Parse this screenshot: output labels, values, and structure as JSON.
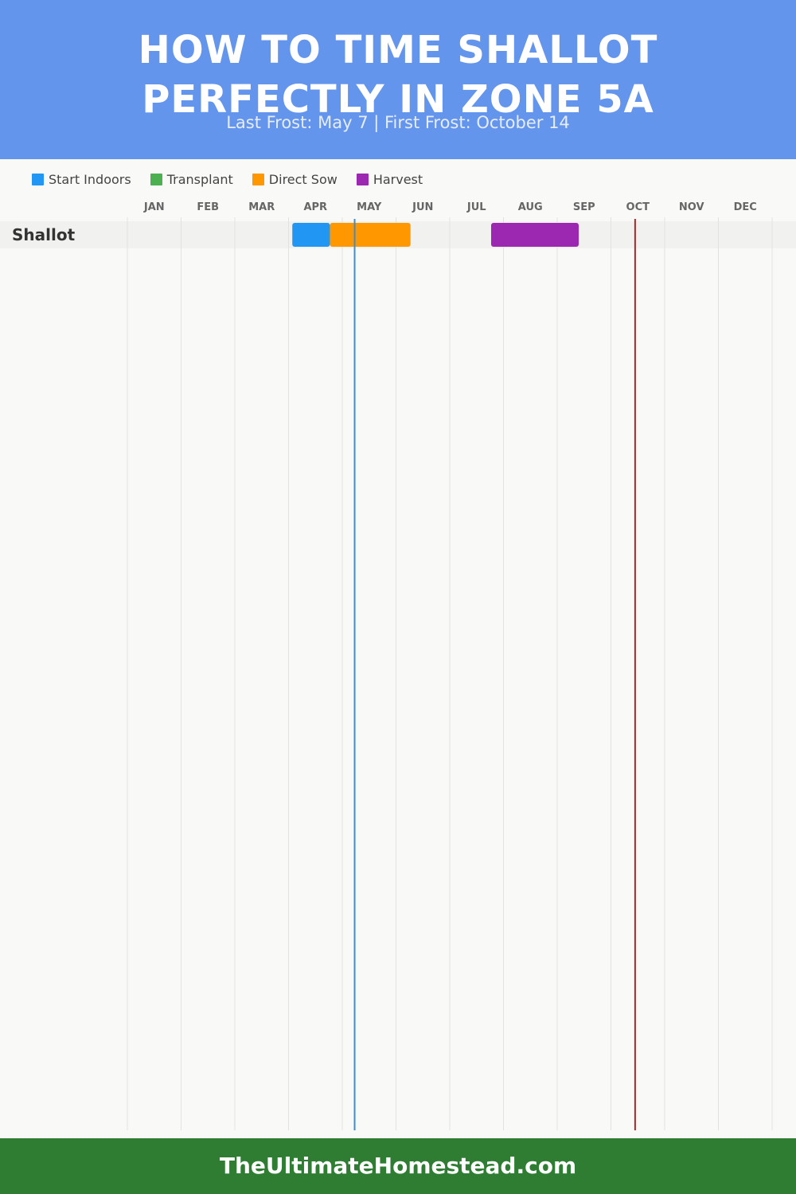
{
  "header": {
    "title_line1": "HOW TO TIME SHALLOT",
    "title_line2": "PERFECTLY IN ZONE 5A",
    "subtitle": "Last Frost: May 7 | First Frost: October 14",
    "background_color": "#6495ed"
  },
  "legend": [
    {
      "label": "Start Indoors",
      "color": "#2196f3"
    },
    {
      "label": "Transplant",
      "color": "#4caf50"
    },
    {
      "label": "Direct Sow",
      "color": "#ff9800"
    },
    {
      "label": "Harvest",
      "color": "#9c27b0"
    }
  ],
  "footer": {
    "text": "TheUltimateHomestead.com",
    "background_color": "#2e7d32"
  },
  "chart_data": {
    "type": "gantt",
    "months": [
      "JAN",
      "FEB",
      "MAR",
      "APR",
      "MAY",
      "JUN",
      "JUL",
      "AUG",
      "SEP",
      "OCT",
      "NOV",
      "DEC"
    ],
    "rows": [
      {
        "crop": "Shallot",
        "tasks": [
          {
            "task": "Start Indoors",
            "start_month": 4.07,
            "end_month": 4.77,
            "color": "#2196f3"
          },
          {
            "task": "Direct Sow",
            "start_month": 4.77,
            "end_month": 6.27,
            "color": "#ff9800"
          },
          {
            "task": "Harvest",
            "start_month": 7.77,
            "end_month": 9.4,
            "color": "#9c27b0"
          }
        ]
      }
    ],
    "markers": [
      {
        "name": "Last Frost",
        "month": 5.23,
        "color": "#3b8fd0"
      },
      {
        "name": "First Frost",
        "month": 10.45,
        "color": "#a52a2a"
      }
    ],
    "grid": true
  }
}
